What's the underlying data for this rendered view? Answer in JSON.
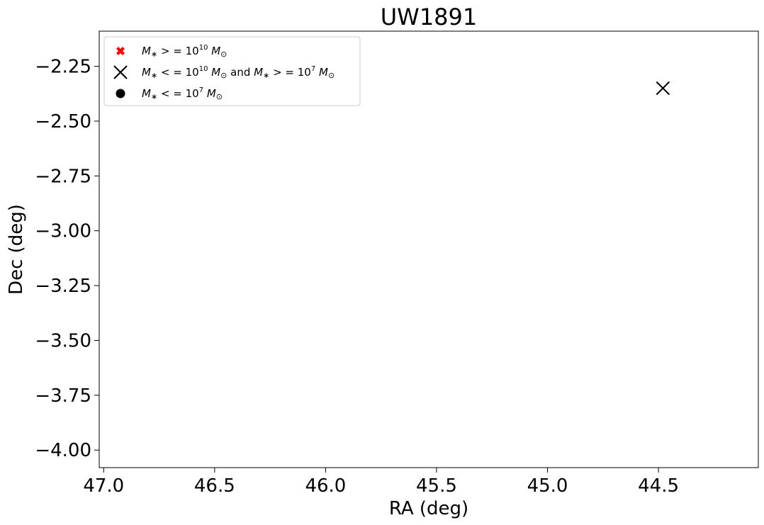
{
  "chart_data": {
    "type": "scatter",
    "title": "UW1891",
    "xlabel": "RA (deg)",
    "ylabel": "Dec (deg)",
    "xlim": [
      47.02,
      44.05
    ],
    "ylim": [
      -4.08,
      -2.09
    ],
    "x_inverted": true,
    "xticks": [
      47.0,
      46.5,
      46.0,
      45.5,
      45.0,
      44.5
    ],
    "xtick_labels": [
      "47.0",
      "46.5",
      "46.0",
      "45.5",
      "45.0",
      "44.5"
    ],
    "yticks": [
      -2.25,
      -2.5,
      -2.75,
      -3.0,
      -3.25,
      -3.5,
      -3.75,
      -4.0
    ],
    "ytick_labels": [
      "−2.25",
      "−2.50",
      "−2.75",
      "−3.00",
      "−3.25",
      "−3.50",
      "−3.75",
      "−4.00"
    ],
    "grid": false,
    "legend_position": "top-left",
    "series": [
      {
        "label_parts": [
          "M",
          "∗",
          " > = 10",
          "10",
          " M",
          "⊙"
        ],
        "marker": "filled-x",
        "color": "#ff0000",
        "points": []
      },
      {
        "label_parts": [
          "M",
          "∗",
          " < = 10",
          "10",
          " M",
          "⊙",
          " and ",
          "M",
          "∗",
          " > = 10",
          "7",
          " M",
          "⊙"
        ],
        "marker": "x",
        "color": "#000000",
        "points": [
          {
            "x": 44.48,
            "y": -2.35
          }
        ]
      },
      {
        "label_parts": [
          "M",
          "∗",
          " < = 10",
          "7",
          " M",
          "⊙"
        ],
        "marker": "circle",
        "color": "#000000",
        "points": []
      }
    ]
  }
}
